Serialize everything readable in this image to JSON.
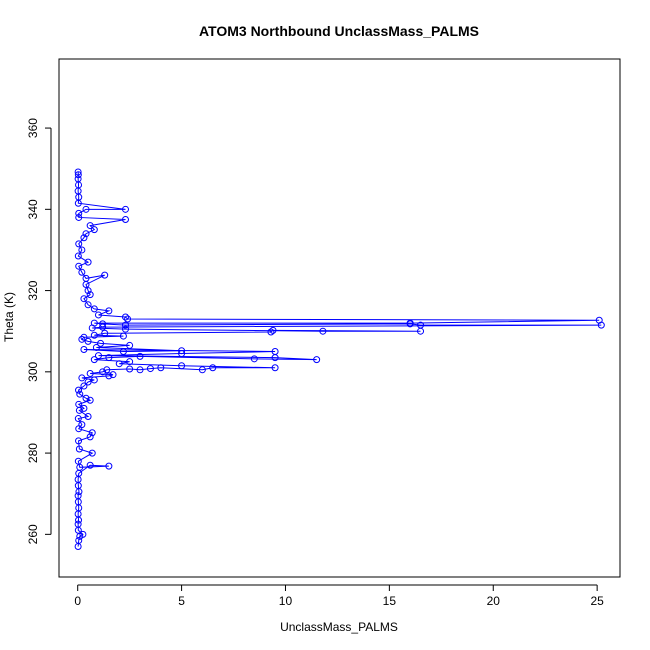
{
  "chart_data": {
    "type": "line",
    "title": "ATOM3 Northbound UnclassMass_PALMS",
    "xlabel": "UnclassMass_PALMS",
    "ylabel": "Theta (K)",
    "xlim": [
      -0.9,
      26.1
    ],
    "ylim": [
      249.5,
      377.0
    ],
    "xticks": [
      0,
      5,
      10,
      15,
      20,
      25
    ],
    "yticks": [
      260,
      280,
      300,
      320,
      340,
      360
    ],
    "series": [
      {
        "color": "#0000ff",
        "marker": "open-circle",
        "points": [
          [
            0.02,
            257.0
          ],
          [
            0.05,
            258.5
          ],
          [
            0.1,
            259.5
          ],
          [
            0.25,
            260.0
          ],
          [
            0.03,
            261.0
          ],
          [
            0.02,
            262.5
          ],
          [
            0.04,
            263.5
          ],
          [
            0.02,
            265.0
          ],
          [
            0.05,
            266.5
          ],
          [
            0.03,
            268.0
          ],
          [
            0.02,
            269.5
          ],
          [
            0.06,
            270.5
          ],
          [
            0.03,
            272.0
          ],
          [
            0.02,
            273.5
          ],
          [
            0.05,
            275.0
          ],
          [
            0.6,
            277.0
          ],
          [
            1.5,
            276.8
          ],
          [
            0.1,
            276.5
          ],
          [
            0.03,
            278.0
          ],
          [
            0.7,
            280.0
          ],
          [
            0.08,
            281.0
          ],
          [
            0.04,
            283.0
          ],
          [
            0.6,
            284.0
          ],
          [
            0.7,
            285.0
          ],
          [
            0.05,
            286.0
          ],
          [
            0.2,
            287.0
          ],
          [
            0.03,
            288.5
          ],
          [
            0.5,
            289.0
          ],
          [
            0.08,
            290.5
          ],
          [
            0.3,
            291.0
          ],
          [
            0.05,
            292.0
          ],
          [
            0.6,
            293.0
          ],
          [
            0.4,
            293.5
          ],
          [
            0.1,
            294.5
          ],
          [
            0.04,
            295.5
          ],
          [
            0.3,
            296.5
          ],
          [
            0.5,
            297.5
          ],
          [
            0.8,
            298.0
          ],
          [
            0.2,
            298.5
          ],
          [
            1.5,
            299.0
          ],
          [
            1.7,
            299.3
          ],
          [
            0.6,
            299.6
          ],
          [
            1.2,
            300.0
          ],
          [
            1.4,
            300.5
          ],
          [
            2.5,
            300.7
          ],
          [
            3.0,
            300.5
          ],
          [
            3.5,
            300.8
          ],
          [
            4.0,
            301.0
          ],
          [
            6.0,
            300.5
          ],
          [
            6.5,
            301.0
          ],
          [
            9.5,
            301.0
          ],
          [
            5.0,
            301.5
          ],
          [
            2.0,
            302.0
          ],
          [
            2.5,
            302.5
          ],
          [
            0.8,
            303.0
          ],
          [
            1.5,
            303.5
          ],
          [
            3.0,
            303.8
          ],
          [
            8.5,
            303.2
          ],
          [
            11.5,
            303.0
          ],
          [
            9.5,
            303.5
          ],
          [
            1.0,
            304.0
          ],
          [
            5.0,
            304.5
          ],
          [
            9.5,
            305.0
          ],
          [
            0.3,
            305.5
          ],
          [
            2.2,
            305.0
          ],
          [
            5.0,
            305.2
          ],
          [
            0.9,
            306.0
          ],
          [
            2.5,
            306.5
          ],
          [
            1.1,
            307.0
          ],
          [
            0.5,
            307.5
          ],
          [
            0.2,
            308.0
          ],
          [
            0.3,
            308.5
          ],
          [
            2.2,
            308.8
          ],
          [
            0.8,
            309.0
          ],
          [
            1.3,
            309.5
          ],
          [
            9.3,
            309.8
          ],
          [
            9.4,
            310.2
          ],
          [
            16.5,
            310.0
          ],
          [
            11.8,
            310.0
          ],
          [
            2.3,
            310.5
          ],
          [
            0.7,
            310.8
          ],
          [
            1.2,
            311.0
          ],
          [
            25.2,
            311.5
          ],
          [
            16.5,
            311.5
          ],
          [
            16.0,
            311.8
          ],
          [
            2.3,
            311.5
          ],
          [
            1.2,
            311.8
          ],
          [
            0.8,
            312.0
          ],
          [
            16.0,
            312.0
          ],
          [
            25.1,
            312.7
          ],
          [
            2.4,
            313.0
          ],
          [
            2.3,
            313.5
          ],
          [
            1.0,
            314.0
          ],
          [
            1.5,
            315.0
          ],
          [
            0.8,
            315.5
          ],
          [
            0.5,
            316.5
          ],
          [
            0.3,
            318.0
          ],
          [
            0.6,
            319.0
          ],
          [
            0.5,
            320.0
          ],
          [
            0.4,
            321.5
          ],
          [
            1.3,
            323.8
          ],
          [
            0.4,
            323.0
          ],
          [
            0.2,
            324.5
          ],
          [
            0.05,
            326.0
          ],
          [
            0.5,
            327.0
          ],
          [
            0.03,
            328.5
          ],
          [
            0.2,
            330.0
          ],
          [
            0.05,
            331.5
          ],
          [
            0.3,
            333.0
          ],
          [
            0.4,
            334.0
          ],
          [
            0.8,
            335.0
          ],
          [
            0.6,
            336.0
          ],
          [
            2.3,
            337.5
          ],
          [
            0.05,
            338.0
          ],
          [
            0.05,
            339.0
          ],
          [
            0.4,
            340.0
          ],
          [
            2.3,
            340.0
          ],
          [
            0.03,
            341.5
          ],
          [
            0.05,
            343.0
          ],
          [
            0.02,
            344.5
          ],
          [
            0.04,
            346.0
          ],
          [
            0.02,
            347.5
          ],
          [
            0.03,
            348.5
          ],
          [
            0.02,
            349.2
          ]
        ]
      }
    ]
  }
}
